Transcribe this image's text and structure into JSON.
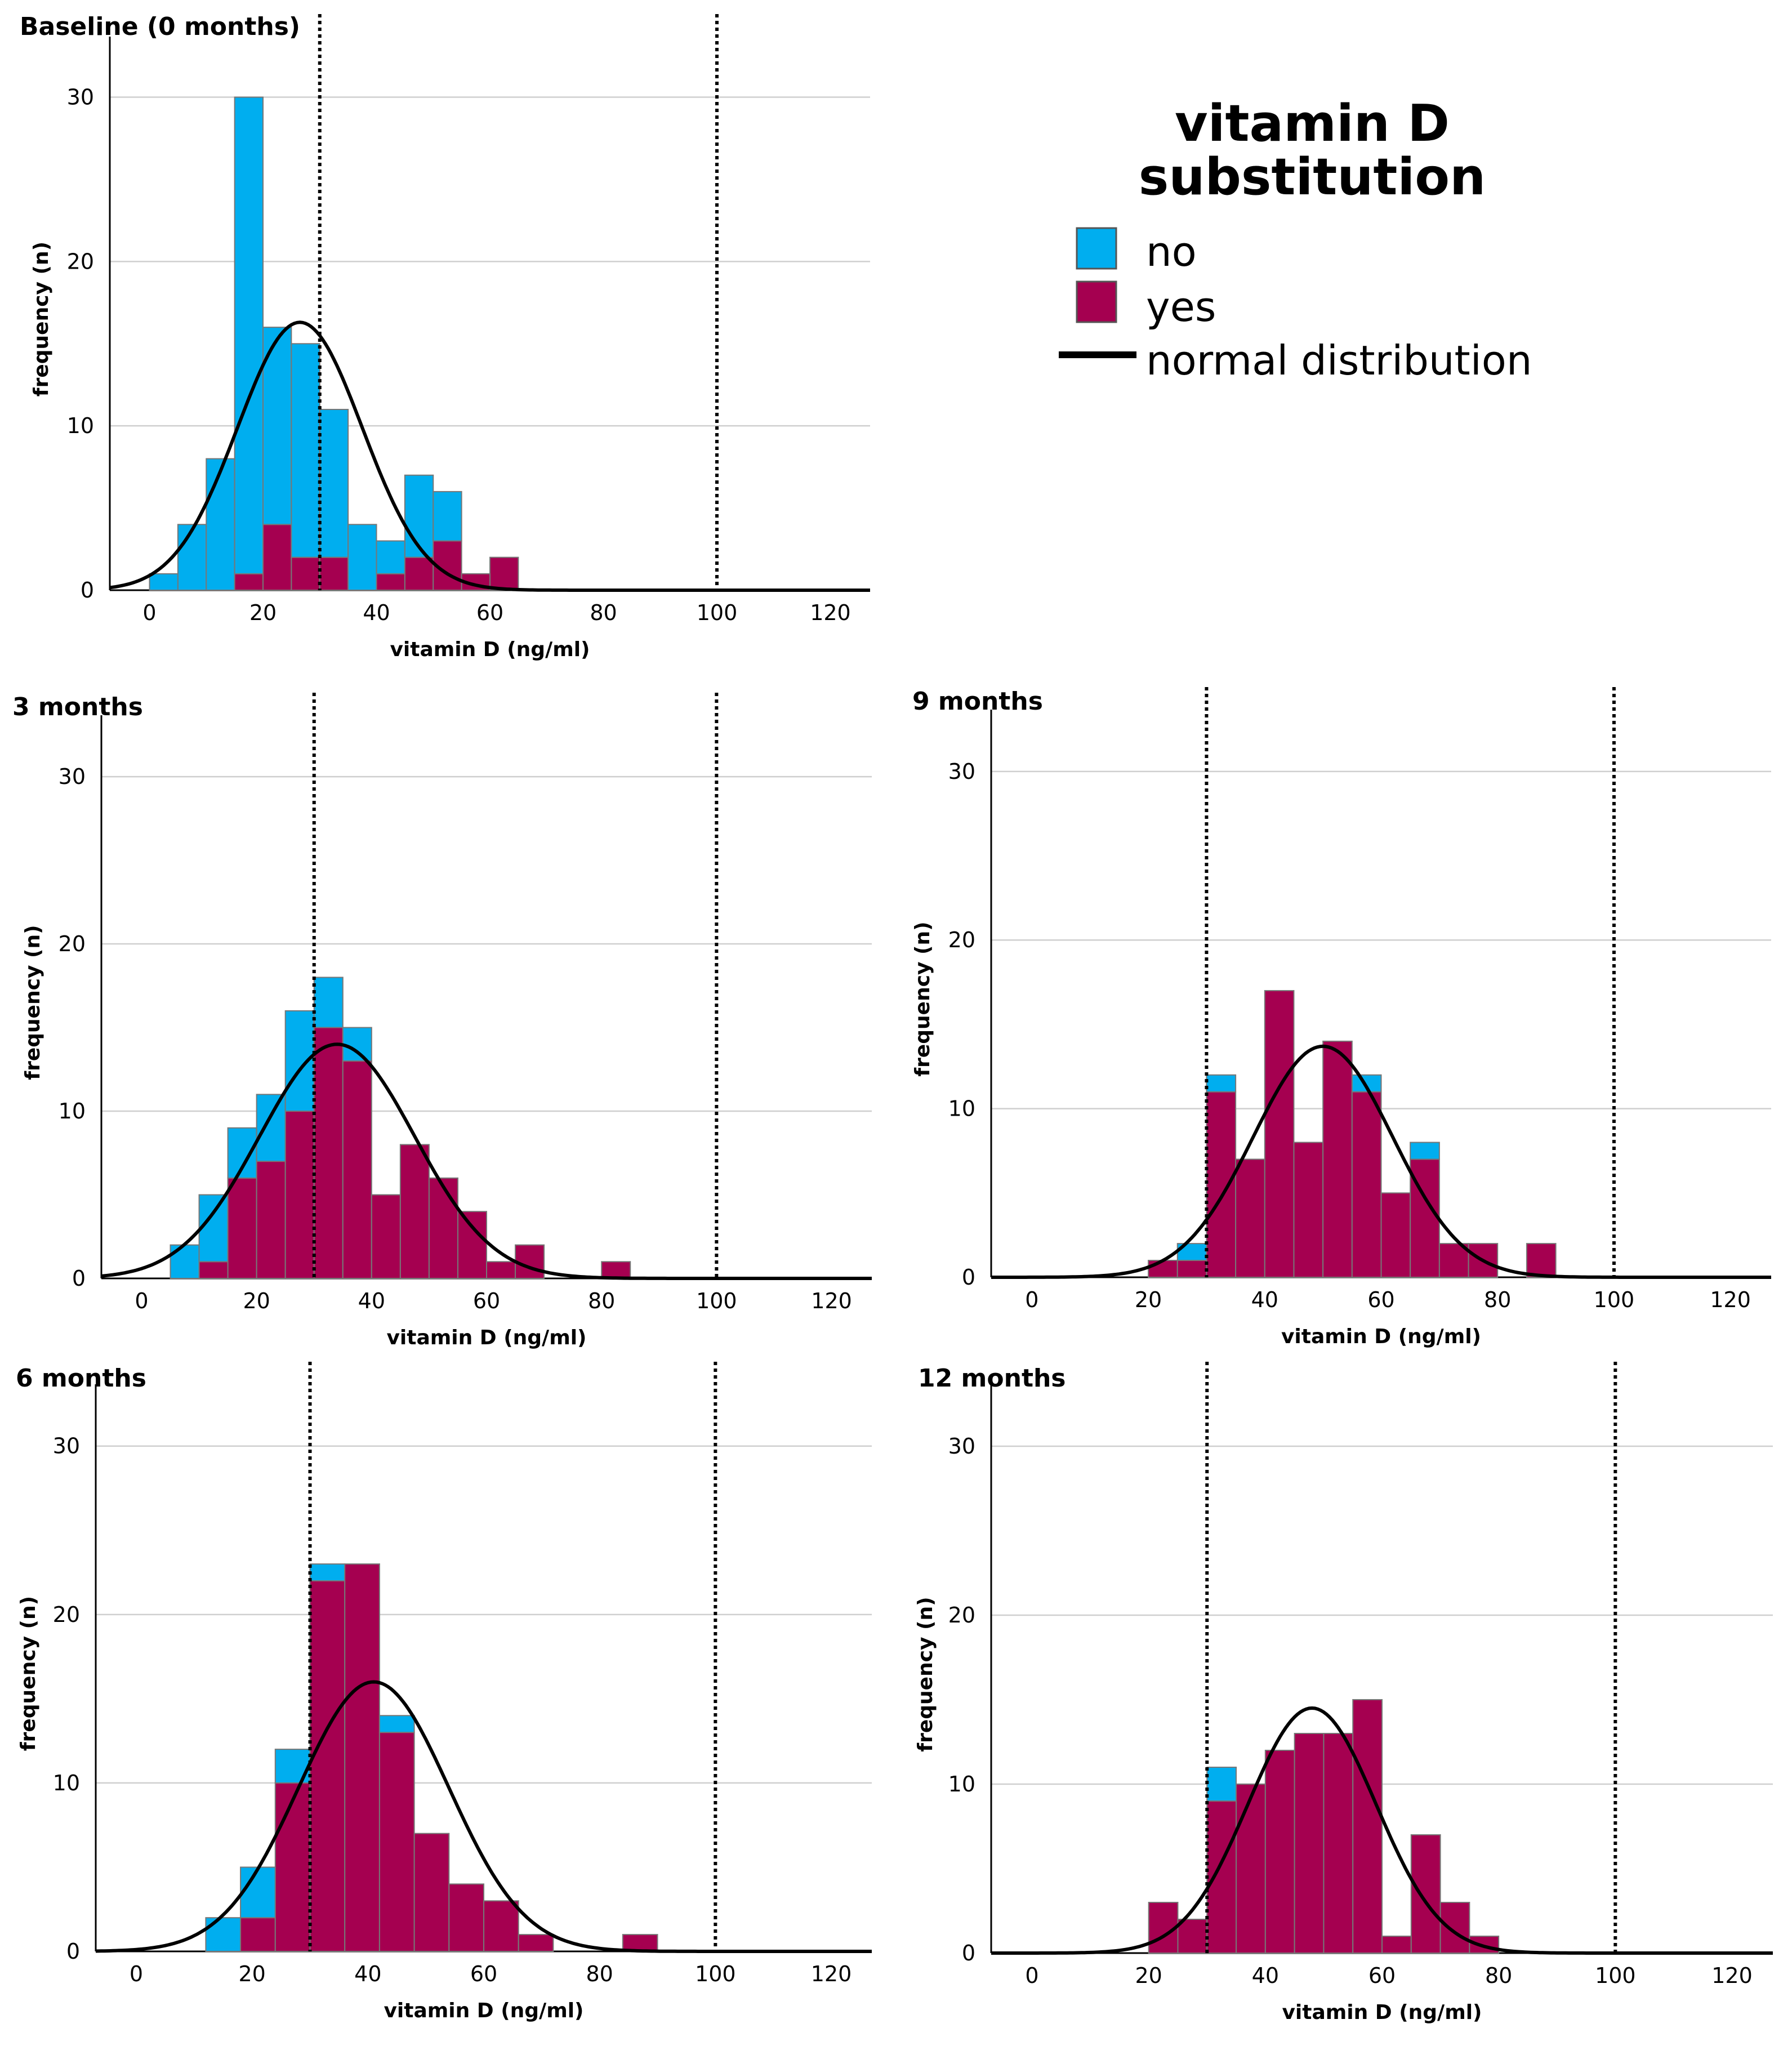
{
  "legend": {
    "title_line1": "vitamin D",
    "title_line2": "substitution",
    "items": [
      {
        "label": "no",
        "color": "#00AEEF",
        "kind": "swatch"
      },
      {
        "label": "yes",
        "color": "#A50050",
        "kind": "swatch"
      },
      {
        "label": "normal distribution",
        "color": "#000000",
        "kind": "line"
      }
    ]
  },
  "colors": {
    "no": "#00AEEF",
    "yes": "#A50050",
    "curve": "#000000",
    "grid": "#CFCFCF"
  },
  "chart_data": [
    {
      "id": "baseline",
      "type": "bar",
      "stacked": true,
      "title": "Baseline (0 months)",
      "xlabel": "vitamin D (ng/ml)",
      "ylabel": "frequency (n)",
      "xlim": [
        -7,
        127
      ],
      "ylim": [
        0,
        33
      ],
      "xticks": [
        0,
        20,
        40,
        60,
        80,
        100,
        120
      ],
      "yticks": [
        0,
        10,
        20,
        30
      ],
      "bin_width": 5,
      "bins_start": [
        0,
        5,
        10,
        15,
        20,
        25,
        30,
        35,
        40,
        45,
        50,
        55,
        60
      ],
      "series": [
        {
          "name": "yes",
          "values": [
            0,
            0,
            0,
            1,
            4,
            2,
            2,
            0,
            1,
            2,
            3,
            1,
            2
          ]
        },
        {
          "name": "no",
          "values": [
            1,
            4,
            8,
            29,
            12,
            13,
            9,
            4,
            2,
            5,
            3,
            0,
            0
          ]
        }
      ],
      "reference_lines": [
        30,
        100
      ],
      "normal_curve": {
        "mean": 26.5,
        "sd": 11.0,
        "peak": 16.3
      }
    },
    {
      "id": "m3",
      "type": "bar",
      "stacked": true,
      "title": "3 months",
      "xlabel": "vitamin D (ng/ml)",
      "ylabel": "frequency (n)",
      "xlim": [
        -7,
        127
      ],
      "ylim": [
        0,
        33
      ],
      "xticks": [
        0,
        20,
        40,
        60,
        80,
        100,
        120
      ],
      "yticks": [
        0,
        10,
        20,
        30
      ],
      "bin_width": 5,
      "bins_start": [
        5,
        10,
        15,
        20,
        25,
        30,
        35,
        40,
        45,
        50,
        55,
        60,
        65,
        70,
        75,
        80
      ],
      "series": [
        {
          "name": "yes",
          "values": [
            0,
            1,
            6,
            7,
            10,
            15,
            13,
            5,
            8,
            6,
            4,
            1,
            2,
            0,
            0,
            1
          ]
        },
        {
          "name": "no",
          "values": [
            2,
            4,
            3,
            4,
            6,
            3,
            2,
            0,
            0,
            0,
            0,
            0,
            0,
            0,
            0,
            0
          ]
        }
      ],
      "reference_lines": [
        30,
        100
      ],
      "normal_curve": {
        "mean": 34,
        "sd": 13.5,
        "peak": 14.0
      }
    },
    {
      "id": "m9",
      "type": "bar",
      "stacked": true,
      "title": "9 months",
      "xlabel": "vitamin D (ng/ml)",
      "ylabel": "frequency (n)",
      "xlim": [
        -7,
        127
      ],
      "ylim": [
        0,
        33
      ],
      "xticks": [
        0,
        20,
        40,
        60,
        80,
        100,
        120
      ],
      "yticks": [
        0,
        10,
        20,
        30
      ],
      "bin_width": 5,
      "bins_start": [
        20,
        25,
        30,
        35,
        40,
        45,
        50,
        55,
        60,
        65,
        70,
        75,
        80,
        85
      ],
      "series": [
        {
          "name": "yes",
          "values": [
            1,
            1,
            11,
            7,
            17,
            8,
            14,
            11,
            5,
            7,
            2,
            2,
            0,
            2
          ]
        },
        {
          "name": "no",
          "values": [
            0,
            1,
            1,
            0,
            0,
            0,
            0,
            1,
            0,
            1,
            0,
            0,
            0,
            0
          ]
        }
      ],
      "reference_lines": [
        30,
        100
      ],
      "normal_curve": {
        "mean": 50,
        "sd": 12.0,
        "peak": 13.7
      }
    },
    {
      "id": "m6",
      "type": "bar",
      "stacked": true,
      "title": "6 months",
      "xlabel": "vitamin D (ng/ml)",
      "ylabel": "frequency (n)",
      "xlim": [
        -7,
        127
      ],
      "ylim": [
        0,
        33
      ],
      "xticks": [
        0,
        20,
        40,
        60,
        80,
        100,
        120
      ],
      "yticks": [
        0,
        10,
        20,
        30
      ],
      "bin_width": 6,
      "bins_start": [
        12,
        18,
        24,
        30,
        36,
        42,
        48,
        54,
        60,
        66,
        72,
        78,
        84
      ],
      "series": [
        {
          "name": "yes",
          "values": [
            0,
            2,
            10,
            22,
            23,
            13,
            7,
            4,
            3,
            1,
            0,
            0,
            1
          ]
        },
        {
          "name": "no",
          "values": [
            2,
            3,
            2,
            1,
            0,
            1,
            0,
            0,
            0,
            0,
            0,
            0,
            0
          ]
        }
      ],
      "reference_lines": [
        30,
        100
      ],
      "normal_curve": {
        "mean": 41,
        "sd": 13.0,
        "peak": 16.0
      }
    },
    {
      "id": "m12",
      "type": "bar",
      "stacked": true,
      "title": "12 months",
      "xlabel": "vitamin D (ng/ml)",
      "ylabel": "frequency (n)",
      "xlim": [
        -7,
        127
      ],
      "ylim": [
        0,
        33
      ],
      "xticks": [
        0,
        20,
        40,
        60,
        80,
        100,
        120
      ],
      "yticks": [
        0,
        10,
        20,
        30
      ],
      "bin_width": 5,
      "bins_start": [
        20,
        25,
        30,
        35,
        40,
        45,
        50,
        55,
        60,
        65,
        70,
        75
      ],
      "series": [
        {
          "name": "yes",
          "values": [
            3,
            2,
            9,
            10,
            12,
            13,
            13,
            15,
            1,
            7,
            3,
            1
          ]
        },
        {
          "name": "no",
          "values": [
            0,
            0,
            2,
            0,
            0,
            0,
            0,
            0,
            0,
            0,
            0,
            0
          ]
        }
      ],
      "reference_lines": [
        30,
        100
      ],
      "normal_curve": {
        "mean": 48,
        "sd": 11.0,
        "peak": 14.5
      }
    }
  ]
}
